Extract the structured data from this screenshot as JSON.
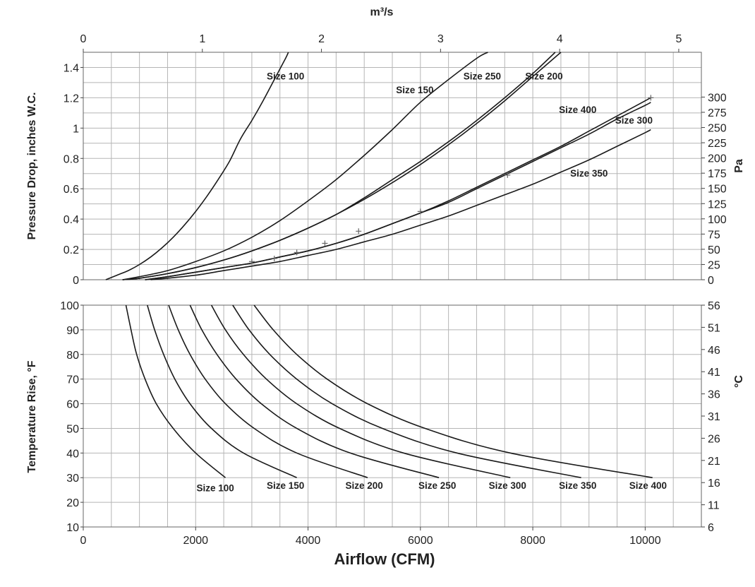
{
  "chart_data": [
    {
      "type": "line",
      "title": "",
      "xlabel": "Airflow (CFM)",
      "ylabel": "Pressure Drop, inches W.C.",
      "y2label": "Pa",
      "x2label": "m³/s",
      "xlim": [
        0,
        11000
      ],
      "ylim": [
        0,
        1.5
      ],
      "xticks": [
        0,
        2000,
        4000,
        6000,
        8000,
        10000
      ],
      "yticks": [
        0,
        0.2,
        0.4,
        0.6,
        0.8,
        1,
        1.2,
        1.4
      ],
      "y2lim": [
        0,
        373.6
      ],
      "y2ticks": [
        0,
        25,
        50,
        75,
        100,
        125,
        150,
        175,
        200,
        225,
        250,
        275,
        300
      ],
      "x2lim": [
        0,
        5.19
      ],
      "x2ticks": [
        0,
        1,
        2,
        3,
        4,
        5
      ],
      "grid": true,
      "series": [
        {
          "name": "Size 100",
          "x": [
            400,
            600,
            800,
            1000,
            1200,
            1400,
            1600,
            1800,
            2000,
            2200,
            2400,
            2600,
            2800,
            3000,
            3200,
            3400,
            3600,
            3650
          ],
          "y": [
            0,
            0.03,
            0.06,
            0.1,
            0.15,
            0.21,
            0.28,
            0.36,
            0.45,
            0.55,
            0.66,
            0.78,
            0.93,
            1.05,
            1.18,
            1.32,
            1.46,
            1.5
          ]
        },
        {
          "name": "Size 150",
          "x": [
            700,
            1000,
            1500,
            2000,
            2500,
            3000,
            3500,
            4000,
            4500,
            5000,
            5500,
            6000,
            6500,
            7000,
            7200
          ],
          "y": [
            0,
            0.02,
            0.06,
            0.12,
            0.19,
            0.28,
            0.39,
            0.52,
            0.66,
            0.82,
            0.99,
            1.17,
            1.32,
            1.46,
            1.5
          ]
        },
        {
          "name": "Size 250",
          "x": [
            700,
            1000,
            1500,
            2000,
            2500,
            3000,
            3500,
            4000,
            4500,
            5000,
            5500,
            6000,
            6500,
            7000,
            7500,
            8000,
            8400
          ],
          "y": [
            0,
            0.01,
            0.04,
            0.08,
            0.13,
            0.19,
            0.26,
            0.34,
            0.43,
            0.54,
            0.66,
            0.78,
            0.91,
            1.05,
            1.2,
            1.36,
            1.5
          ]
        },
        {
          "name": "Size 200",
          "x": [
            700,
            1000,
            1500,
            2000,
            2500,
            3000,
            3500,
            4000,
            4500,
            5000,
            5500,
            6000,
            6500,
            7000,
            7500,
            8000,
            8500
          ],
          "y": [
            0,
            0.01,
            0.04,
            0.08,
            0.13,
            0.19,
            0.26,
            0.34,
            0.43,
            0.53,
            0.64,
            0.76,
            0.89,
            1.03,
            1.18,
            1.34,
            1.5
          ]
        },
        {
          "name": "Size 400",
          "x": [
            1100,
            1500,
            2000,
            2500,
            3000,
            3500,
            4000,
            4500,
            5000,
            5500,
            6000,
            6500,
            7000,
            7500,
            8000,
            8500,
            9000,
            9500,
            10000,
            10100
          ],
          "y": [
            0,
            0.02,
            0.05,
            0.08,
            0.11,
            0.15,
            0.19,
            0.24,
            0.3,
            0.37,
            0.44,
            0.52,
            0.61,
            0.7,
            0.79,
            0.88,
            0.98,
            1.08,
            1.18,
            1.2
          ]
        },
        {
          "name": "Size 300",
          "x": [
            1100,
            1500,
            2000,
            2500,
            3000,
            3500,
            4000,
            4500,
            5000,
            5500,
            6000,
            6500,
            7000,
            7500,
            8000,
            8500,
            9000,
            9500,
            10000,
            10100
          ],
          "y": [
            0,
            0.02,
            0.05,
            0.08,
            0.11,
            0.15,
            0.19,
            0.24,
            0.3,
            0.37,
            0.44,
            0.51,
            0.6,
            0.69,
            0.78,
            0.87,
            0.96,
            1.06,
            1.15,
            1.17
          ]
        },
        {
          "name": "Size 350",
          "x": [
            1200,
            1500,
            2000,
            2500,
            3000,
            3500,
            4000,
            4500,
            5000,
            5500,
            6000,
            6500,
            7000,
            7500,
            8000,
            8500,
            9000,
            9500,
            10000,
            10100
          ],
          "y": [
            0,
            0.01,
            0.03,
            0.06,
            0.09,
            0.12,
            0.16,
            0.2,
            0.25,
            0.3,
            0.36,
            0.42,
            0.49,
            0.56,
            0.63,
            0.71,
            0.79,
            0.88,
            0.97,
            0.99
          ]
        }
      ],
      "markers": {
        "x": [
          3000,
          3400,
          3800,
          4300,
          4900,
          6000,
          7550,
          10100
        ],
        "y": [
          0.12,
          0.14,
          0.18,
          0.24,
          0.32,
          0.45,
          0.69,
          1.2
        ]
      },
      "labels": [
        {
          "text": "Size 100",
          "x": 3600,
          "y": 1.32
        },
        {
          "text": "Size 150",
          "x": 5900,
          "y": 1.23
        },
        {
          "text": "Size 250",
          "x": 7100,
          "y": 1.32
        },
        {
          "text": "Size 200",
          "x": 8200,
          "y": 1.32
        },
        {
          "text": "Size 400",
          "x": 8800,
          "y": 1.1
        },
        {
          "text": "Size 300",
          "x": 9800,
          "y": 1.03
        },
        {
          "text": "Size 350",
          "x": 9000,
          "y": 0.68
        }
      ]
    },
    {
      "type": "line",
      "title": "",
      "xlabel": "Airflow (CFM)",
      "ylabel": "Temperature Rise, °F",
      "y2label": "°C",
      "xlim": [
        0,
        11000
      ],
      "ylim": [
        10,
        100
      ],
      "xticks": [
        0,
        2000,
        4000,
        6000,
        8000,
        10000
      ],
      "yticks": [
        10,
        20,
        30,
        40,
        50,
        60,
        70,
        80,
        90,
        100
      ],
      "y2ticks": [
        6,
        11,
        16,
        21,
        26,
        31,
        36,
        41,
        46,
        51,
        56
      ],
      "grid": true,
      "series": [
        {
          "name": "Size 100",
          "x": [
            760,
            850,
            950,
            1100,
            1300,
            1600,
            2000,
            2530
          ],
          "y": [
            100,
            90,
            80,
            70,
            60,
            50,
            40,
            30
          ]
        },
        {
          "name": "Size 150",
          "x": [
            1140,
            1270,
            1430,
            1630,
            1900,
            2280,
            2850,
            3800
          ],
          "y": [
            100,
            90,
            80,
            70,
            60,
            50,
            40,
            30
          ]
        },
        {
          "name": "Size 200",
          "x": [
            1520,
            1690,
            1900,
            2170,
            2530,
            3040,
            3800,
            5060
          ],
          "y": [
            100,
            90,
            80,
            70,
            60,
            50,
            40,
            30
          ]
        },
        {
          "name": "Size 250",
          "x": [
            1900,
            2110,
            2380,
            2720,
            3170,
            3800,
            4750,
            6330
          ],
          "y": [
            100,
            90,
            80,
            70,
            60,
            50,
            40,
            30
          ]
        },
        {
          "name": "Size 300",
          "x": [
            2280,
            2530,
            2850,
            3260,
            3800,
            4560,
            5700,
            7600
          ],
          "y": [
            100,
            90,
            80,
            70,
            60,
            50,
            40,
            30
          ]
        },
        {
          "name": "Size 350",
          "x": [
            2660,
            2950,
            3320,
            3800,
            4430,
            5320,
            6650,
            8860
          ],
          "y": [
            100,
            90,
            80,
            70,
            60,
            50,
            40,
            30
          ]
        },
        {
          "name": "Size 400",
          "x": [
            3040,
            3380,
            3800,
            4340,
            5060,
            6080,
            7600,
            10130
          ],
          "y": [
            100,
            90,
            80,
            70,
            60,
            50,
            40,
            30
          ]
        }
      ],
      "labels": [
        {
          "text": "Size 100",
          "x": 2350,
          "y": 24.5
        },
        {
          "text": "Size 150",
          "x": 3600,
          "y": 25.5
        },
        {
          "text": "Size 200",
          "x": 5000,
          "y": 25.5
        },
        {
          "text": "Size 250",
          "x": 6300,
          "y": 25.5
        },
        {
          "text": "Size 300",
          "x": 7550,
          "y": 25.5
        },
        {
          "text": "Size 350",
          "x": 8800,
          "y": 25.5
        },
        {
          "text": "Size 400",
          "x": 10050,
          "y": 25.5
        }
      ]
    }
  ]
}
